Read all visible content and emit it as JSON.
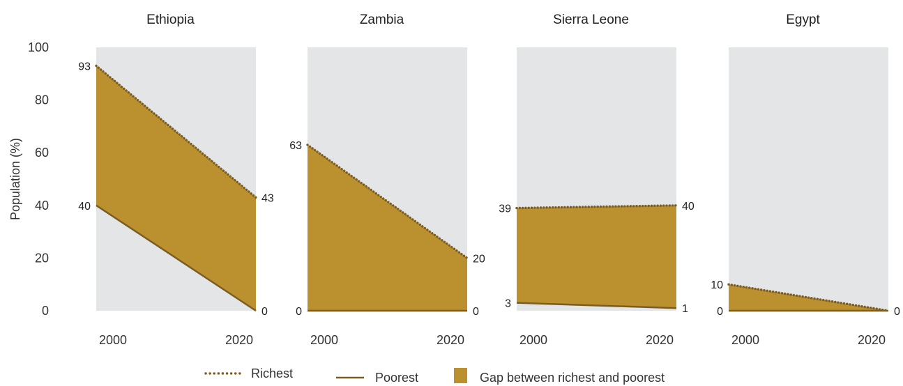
{
  "chart_data": {
    "type": "area",
    "ylabel": "Population (%)",
    "ylim": [
      0,
      100
    ],
    "y_ticks": [
      "0",
      "20",
      "40",
      "60",
      "80",
      "100"
    ],
    "x_ticks": [
      "2000",
      "2020"
    ],
    "x": [
      2000,
      2020
    ],
    "panels": [
      {
        "title": "Ethiopia",
        "richest": [
          93,
          43
        ],
        "poorest": [
          40,
          0
        ],
        "labels": {
          "richest_start": "93",
          "richest_end": "43",
          "poorest_start": "40",
          "poorest_end": "0"
        }
      },
      {
        "title": "Zambia",
        "richest": [
          63,
          20
        ],
        "poorest": [
          0,
          0
        ],
        "labels": {
          "richest_start": "63",
          "richest_end": "20",
          "poorest_start": "0",
          "poorest_end": "0"
        }
      },
      {
        "title": "Sierra Leone",
        "richest": [
          39,
          40
        ],
        "poorest": [
          3,
          1
        ],
        "labels": {
          "richest_start": "39",
          "richest_end": "40",
          "poorest_start": "3",
          "poorest_end": "1"
        }
      },
      {
        "title": "Egypt",
        "richest": [
          10,
          0
        ],
        "poorest": [
          0,
          0
        ],
        "labels": {
          "richest_start": "10",
          "richest_end": "0",
          "poorest_start": "0",
          "poorest_end": "0"
        }
      }
    ],
    "legend": [
      {
        "key": "richest",
        "label": "Richest"
      },
      {
        "key": "poorest",
        "label": "Poorest"
      },
      {
        "key": "gap",
        "label": "Gap between richest and poorest"
      }
    ],
    "legend_position": "bottom",
    "grid": false,
    "colors": {
      "panel_background": "#e4e5e7",
      "gap_fill": "#bb902e",
      "line": "#7b5d22",
      "text": "#333333"
    }
  }
}
